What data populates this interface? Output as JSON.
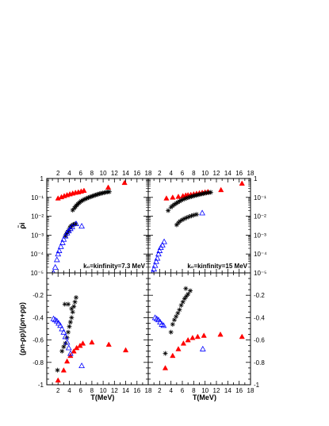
{
  "chart_data": [
    {
      "panel": "top-left",
      "type": "scatter",
      "xlim": [
        0,
        18
      ],
      "ylim_exponent": [
        -5,
        0
      ],
      "y_scale": "log",
      "ylabel": "ρ̃i",
      "x_ticks": [
        "2",
        "4",
        "6",
        "8",
        "10",
        "12",
        "14",
        "16",
        "18"
      ],
      "y_ticks": [
        "10⁻⁵",
        "10⁻⁴",
        "10⁻³",
        "10⁻²",
        "10⁻¹",
        "1"
      ],
      "annotation": "k₀=kinfinity=7.3 MeV",
      "series": [
        {
          "marker": "triangle-filled",
          "color": "#ff0000",
          "x": [
            2.0,
            2.6,
            3.1,
            3.6,
            4.1,
            4.6,
            5.1,
            5.6,
            6.1,
            6.6,
            10.9,
            13.8
          ],
          "y": [
            0.09,
            0.105,
            0.12,
            0.135,
            0.15,
            0.165,
            0.18,
            0.19,
            0.21,
            0.23,
            0.34,
            0.6
          ]
        },
        {
          "marker": "asterisk",
          "color": "#000000",
          "x": [
            4.6,
            4.9,
            5.1,
            5.3,
            5.5,
            5.7,
            5.9,
            6.1,
            6.4,
            6.6,
            6.9,
            7.1,
            7.4,
            7.6,
            7.9,
            8.1,
            8.4,
            8.6,
            8.9,
            9.1,
            9.4,
            9.6,
            9.9,
            10.2,
            10.5,
            10.8,
            11.1,
            4.1,
            4.3,
            4.5,
            4.7,
            4.9,
            5.1,
            3.3,
            3.5,
            3.7,
            3.9
          ],
          "y": [
            0.021,
            0.027,
            0.033,
            0.038,
            0.044,
            0.05,
            0.057,
            0.063,
            0.07,
            0.077,
            0.084,
            0.09,
            0.097,
            0.103,
            0.11,
            0.117,
            0.125,
            0.132,
            0.14,
            0.148,
            0.156,
            0.163,
            0.17,
            0.178,
            0.186,
            0.192,
            0.198,
            0.0025,
            0.003,
            0.0033,
            0.0036,
            0.0038,
            0.004,
            0.0009,
            0.0012,
            0.0015,
            0.0018
          ]
        },
        {
          "marker": "triangle-open",
          "color": "#0000ff",
          "x": [
            1.2,
            1.5,
            1.8,
            2.0,
            2.2,
            2.5,
            2.8,
            3.0,
            3.3,
            3.6,
            3.9,
            4.2,
            4.5,
            5.2,
            6.2
          ],
          "y": [
            1e-05,
            2e-05,
            5e-05,
            0.0001,
            0.00015,
            0.00025,
            0.0004,
            0.0006,
            0.0009,
            0.0013,
            0.0017,
            0.0022,
            0.0028,
            0.004,
            0.003
          ]
        }
      ]
    },
    {
      "panel": "top-right",
      "type": "scatter",
      "xlim": [
        0,
        18
      ],
      "ylim_exponent": [
        -5,
        0
      ],
      "y_scale": "log",
      "x_ticks": [
        "2",
        "4",
        "6",
        "8",
        "10",
        "12",
        "14",
        "16",
        "18"
      ],
      "y_ticks": [
        "10⁻⁵",
        "10⁻⁴",
        "10⁻³",
        "10⁻²",
        "10⁻¹",
        "1"
      ],
      "annotation": "k₀=kinfinity=15 MeV",
      "series": [
        {
          "marker": "triangle-filled",
          "color": "#ff0000",
          "x": [
            3.2,
            4.3,
            5.3,
            6.1,
            6.6,
            7.0,
            7.5,
            8.0,
            8.5,
            9.0,
            9.5,
            10.0,
            10.5,
            12.8,
            16.5
          ],
          "y": [
            0.09,
            0.1,
            0.11,
            0.12,
            0.13,
            0.135,
            0.14,
            0.15,
            0.16,
            0.17,
            0.18,
            0.19,
            0.2,
            0.25,
            0.55
          ]
        },
        {
          "marker": "asterisk",
          "color": "#000000",
          "x": [
            3.5,
            4.0,
            4.3,
            4.6,
            4.9,
            5.2,
            5.5,
            5.8,
            6.1,
            6.4,
            6.7,
            7.0,
            7.3,
            7.6,
            7.9,
            8.2,
            8.5,
            8.8,
            9.1,
            9.4,
            9.7,
            10.0,
            10.3,
            10.7,
            11.0,
            5.0,
            5.3,
            5.6,
            6.0,
            6.4,
            6.8,
            7.2,
            7.6,
            8.0,
            8.5
          ],
          "y": [
            0.02,
            0.03,
            0.036,
            0.042,
            0.048,
            0.055,
            0.062,
            0.07,
            0.077,
            0.084,
            0.09,
            0.097,
            0.104,
            0.11,
            0.117,
            0.124,
            0.13,
            0.137,
            0.144,
            0.151,
            0.158,
            0.165,
            0.172,
            0.18,
            0.185,
            0.0035,
            0.0045,
            0.0055,
            0.0065,
            0.0075,
            0.0085,
            0.0095,
            0.0105,
            0.0115,
            0.0125
          ]
        },
        {
          "marker": "triangle-open",
          "color": "#0000ff",
          "x": [
            0.8,
            1.0,
            1.2,
            1.4,
            1.6,
            1.8,
            2.0,
            2.2,
            2.5,
            2.8,
            9.5
          ],
          "y": [
            1e-05,
            1.6e-05,
            2.5e-05,
            4e-05,
            6e-05,
            0.0001,
            0.00015,
            0.00022,
            0.0003,
            0.00045,
            0.015
          ]
        }
      ]
    },
    {
      "panel": "bottom-left",
      "type": "scatter",
      "xlim": [
        0,
        18
      ],
      "ylim": [
        -1,
        0
      ],
      "xlabel": "T(MeV)",
      "ylabel": "(ρn-ρp)/(ρn+ρp)",
      "x_ticks": [
        "2",
        "4",
        "6",
        "8",
        "10",
        "12",
        "14",
        "16",
        "18"
      ],
      "y_ticks": [
        "-1",
        "-0.8",
        "-0.6",
        "-0.4",
        "-0.2"
      ],
      "series": [
        {
          "marker": "triangle-filled",
          "color": "#ff0000",
          "x": [
            2.0,
            3.0,
            3.6,
            4.2,
            4.8,
            5.3,
            5.9,
            6.4,
            8.0,
            11.0,
            14.0
          ],
          "y": [
            -0.96,
            -0.87,
            -0.79,
            -0.74,
            -0.7,
            -0.67,
            -0.65,
            -0.63,
            -0.62,
            -0.64,
            -0.69
          ]
        },
        {
          "marker": "asterisk",
          "color": "#000000",
          "x": [
            1.9,
            2.7,
            3.0,
            3.3,
            3.6,
            3.8,
            4.0,
            4.2,
            4.4,
            4.6,
            4.8,
            5.0,
            5.2,
            3.2,
            3.8,
            4.4
          ],
          "y": [
            -0.87,
            -0.7,
            -0.66,
            -0.63,
            -0.58,
            -0.53,
            -0.48,
            -0.44,
            -0.4,
            -0.35,
            -0.3,
            -0.26,
            -0.22,
            -0.28,
            -0.28,
            -0.32
          ]
        },
        {
          "marker": "triangle-open",
          "color": "#0000ff",
          "x": [
            1.2,
            1.5,
            1.8,
            2.1,
            2.4,
            2.7,
            3.0,
            3.3,
            3.6,
            3.9,
            4.2,
            6.2
          ],
          "y": [
            -0.41,
            -0.42,
            -0.43,
            -0.45,
            -0.47,
            -0.5,
            -0.53,
            -0.57,
            -0.62,
            -0.67,
            -0.72,
            -0.83
          ]
        }
      ]
    },
    {
      "panel": "bottom-right",
      "type": "scatter",
      "xlim": [
        0,
        18
      ],
      "ylim": [
        -1,
        0
      ],
      "xlabel": "T(MeV)",
      "x_ticks": [
        "2",
        "4",
        "6",
        "8",
        "10",
        "12",
        "14",
        "16",
        "18"
      ],
      "y_ticks": [
        "-1",
        "-0.8",
        "-0.6",
        "-0.4",
        "-0.2"
      ],
      "series": [
        {
          "marker": "triangle-filled",
          "color": "#ff0000",
          "x": [
            3.0,
            4.3,
            5.3,
            6.2,
            7.0,
            7.8,
            8.7,
            9.8,
            12.7,
            16.5
          ],
          "y": [
            -0.85,
            -0.74,
            -0.68,
            -0.63,
            -0.6,
            -0.58,
            -0.57,
            -0.56,
            -0.55,
            -0.57
          ]
        },
        {
          "marker": "asterisk",
          "color": "#000000",
          "x": [
            3.0,
            4.0,
            4.3,
            4.6,
            4.9,
            5.2,
            5.5,
            5.8,
            6.1,
            6.4,
            6.7,
            7.0,
            7.4,
            6.6
          ],
          "y": [
            -0.72,
            -0.53,
            -0.46,
            -0.42,
            -0.39,
            -0.36,
            -0.33,
            -0.29,
            -0.26,
            -0.23,
            -0.21,
            -0.19,
            -0.16,
            -0.14
          ]
        },
        {
          "marker": "triangle-open",
          "color": "#0000ff",
          "x": [
            1.2,
            1.5,
            1.8,
            2.1,
            2.4,
            2.7,
            9.6
          ],
          "y": [
            -0.4,
            -0.41,
            -0.42,
            -0.44,
            -0.46,
            -0.47,
            -0.68
          ]
        }
      ]
    }
  ]
}
